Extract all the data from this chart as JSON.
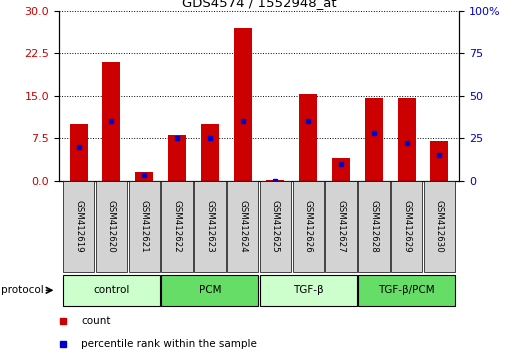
{
  "title": "GDS4574 / 1552948_at",
  "samples": [
    "GSM412619",
    "GSM412620",
    "GSM412621",
    "GSM412622",
    "GSM412623",
    "GSM412624",
    "GSM412625",
    "GSM412626",
    "GSM412627",
    "GSM412628",
    "GSM412629",
    "GSM412630"
  ],
  "count_values": [
    10.0,
    21.0,
    1.5,
    8.0,
    10.0,
    27.0,
    0.05,
    15.2,
    4.0,
    14.5,
    14.5,
    7.0
  ],
  "percentile_values": [
    20,
    35,
    3,
    25,
    25,
    35,
    0,
    35,
    10,
    28,
    22,
    15
  ],
  "groups": [
    {
      "label": "control",
      "start": 0,
      "end": 3,
      "color": "#ccffcc"
    },
    {
      "label": "PCM",
      "start": 3,
      "end": 6,
      "color": "#66dd66"
    },
    {
      "label": "TGF-β",
      "start": 6,
      "end": 9,
      "color": "#ccffcc"
    },
    {
      "label": "TGF-β/PCM",
      "start": 9,
      "end": 12,
      "color": "#66dd66"
    }
  ],
  "bar_color": "#cc0000",
  "marker_color": "#0000cc",
  "left_ylim": [
    0,
    30
  ],
  "right_ylim": [
    0,
    100
  ],
  "left_yticks": [
    0,
    7.5,
    15,
    22.5,
    30
  ],
  "right_yticks": [
    0,
    25,
    50,
    75,
    100
  ],
  "bar_width": 0.55
}
